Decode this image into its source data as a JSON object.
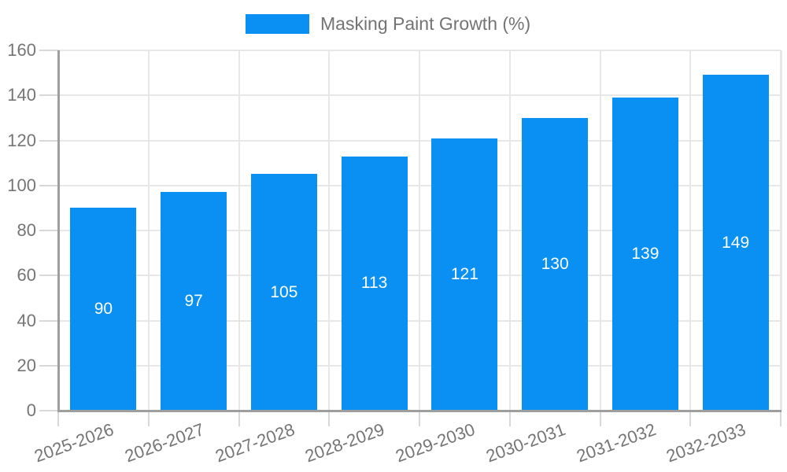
{
  "chart_data": {
    "type": "bar",
    "title": "",
    "legend": "Masking Paint Growth (%)",
    "legend_position": "top",
    "categories": [
      "2025-2026",
      "2026-2027",
      "2027-2028",
      "2028-2029",
      "2029-2030",
      "2030-2031",
      "2031-2032",
      "2032-2033"
    ],
    "series": [
      {
        "name": "Masking Paint Growth (%)",
        "values": [
          90,
          97,
          105,
          113,
          121,
          130,
          139,
          149
        ]
      }
    ],
    "data_labels": [
      "90",
      "97",
      "105",
      "113",
      "121",
      "130",
      "139",
      "149"
    ],
    "xlabel": "",
    "ylabel": "",
    "ylim": [
      0,
      160
    ],
    "yticks": [
      0,
      20,
      40,
      60,
      80,
      100,
      120,
      140,
      160
    ],
    "grid": true,
    "colors": {
      "bar_fill": "#0a90f2",
      "bar_value_text": "#ffffff",
      "axis_line": "#9e9e9e",
      "gridline": "#e7e7e7",
      "tick": "#d8d8d8",
      "axis_text": "#757575",
      "legend_text": "#737373",
      "background": "#ffffff"
    }
  }
}
